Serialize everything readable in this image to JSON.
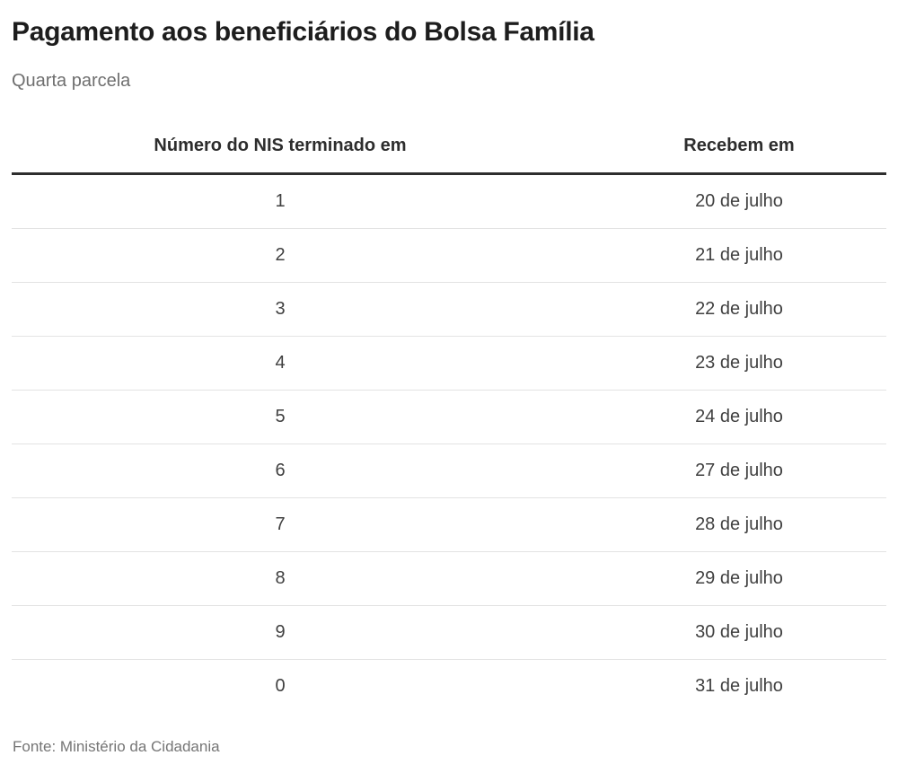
{
  "chart_data": {
    "type": "table",
    "title": "Pagamento aos beneficiários do Bolsa Família",
    "subtitle": "Quarta parcela",
    "columns": [
      "Número do NIS terminado em",
      "Recebem em"
    ],
    "rows": [
      [
        "1",
        "20 de julho"
      ],
      [
        "2",
        "21 de julho"
      ],
      [
        "3",
        "22 de julho"
      ],
      [
        "4",
        "23 de julho"
      ],
      [
        "5",
        "24 de julho"
      ],
      [
        "6",
        "27 de julho"
      ],
      [
        "7",
        "28 de julho"
      ],
      [
        "8",
        "29 de julho"
      ],
      [
        "9",
        "30 de julho"
      ],
      [
        "0",
        "31 de julho"
      ]
    ],
    "source": "Fonte: Ministério da Cidadania"
  },
  "colors": {
    "background": "#ffffff",
    "title_text": "#1d1d1d",
    "subtitle_text": "#6f6f6f",
    "header_text": "#2d2d2d",
    "cell_text": "#404040",
    "header_rule": "#2e2e2e",
    "row_divider": "#e3e3e3",
    "source_text": "#757575"
  }
}
